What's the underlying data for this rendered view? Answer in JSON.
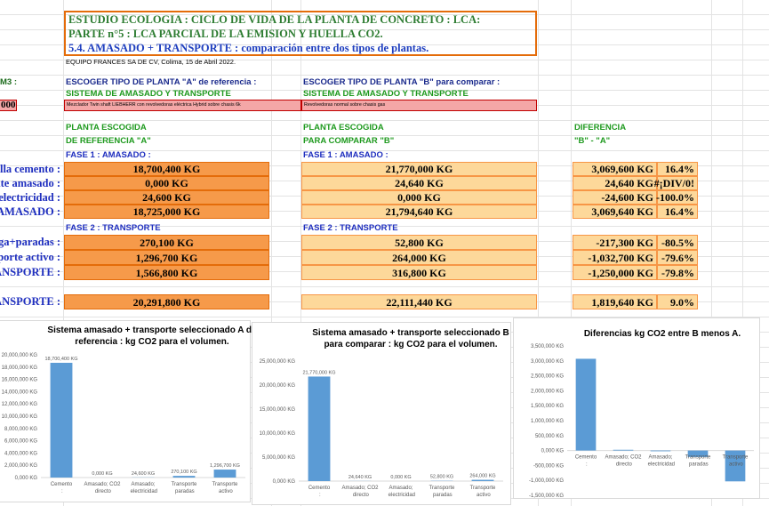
{
  "header": {
    "title_lines": [
      "ESTUDIO ECOLOGIA : CICLO DE VIDA DE LA PLANTA DE CONCRETO : LCA:",
      "PARTE n°5 : LCA PARCIAL DE LA EMISION Y HUELLA CO2.",
      "5.4. AMASADO + TRANSPORTE : comparación entre dos tipos de plantas."
    ],
    "subtitle": "EQUIPO FRANCES SA DE CV, Colima, 15 de Abril 2022."
  },
  "row_labels": [
    "M3 :",
    "000",
    "lla cemento :",
    "nte amasado :",
    "electricidad :",
    "AMASADO :",
    "rga+paradas :",
    "nsporte activo :",
    "ANSPORTE :",
    "ANSPORTE :"
  ],
  "plant_a": {
    "choose": "ESCOGER TIPO DE PLANTA \"A\" de referencia :",
    "system": "SISTEMA DE AMASADO Y TRANSPORTE",
    "model": "Mezclador Twin shaft LIEBHERR con revolvedoras eléctrica Hybrid sobre chasis 6k",
    "heading": "PLANTA ESCOGIDA",
    "subheading": "DE REFERENCIA \"A\"",
    "phase1": "FASE 1 : AMASADO :",
    "phase1_values": [
      "18,700,400 KG",
      "0,000 KG",
      "24,600 KG",
      "18,725,000 KG"
    ],
    "phase2": "FASE 2 : TRANSPORTE",
    "phase2_values": [
      "270,100 KG",
      "1,296,700 KG",
      "1,566,800 KG"
    ],
    "total": "20,291,800 KG"
  },
  "plant_b": {
    "choose": "ESCOGER TIPO DE PLANTA \"B\" para comparar :",
    "system": "SISTEMA DE AMASADO Y TRANSPORTE",
    "model": "Revolvedoras normal sobre chasis gas",
    "heading": "PLANTA ESCOGIDA",
    "subheading": "PARA COMPARAR \"B\"",
    "phase1": "FASE 1 : AMASADO :",
    "phase1_values": [
      "21,770,000 KG",
      "24,640 KG",
      "0,000 KG",
      "21,794,640 KG"
    ],
    "phase2": "FASE 2 : TRANSPORTE",
    "phase2_values": [
      "52,800 KG",
      "264,000 KG",
      "316,800 KG"
    ],
    "total": "22,111,440 KG"
  },
  "difference": {
    "heading": "DIFERENCIA",
    "subheading": "\"B\" - \"A\"",
    "rows": [
      [
        "3,069,600 KG",
        "16.4%"
      ],
      [
        "24,640 KG",
        "#¡DIV/0!"
      ],
      [
        "-24,600 KG",
        "-100.0%"
      ],
      [
        "3,069,640 KG",
        "16.4%"
      ],
      [
        "-217,300 KG",
        "-80.5%"
      ],
      [
        "-1,032,700 KG",
        "-79.6%"
      ],
      [
        "-1,250,000 KG",
        "-79.8%"
      ],
      [
        "1,819,640 KG",
        "9.0%"
      ]
    ]
  },
  "chart_data": [
    {
      "type": "bar",
      "title": "Sistema amasado + transporte seleccionado A de referencia : kg CO2 para el volumen.",
      "categories": [
        "Cemento :",
        "Amasado; CO2 directo",
        "Amasado; electricidad",
        "Transporte paradas",
        "Transporte activo"
      ],
      "values": [
        18700400,
        0,
        24600,
        270100,
        1296700
      ],
      "value_labels": [
        "18,700,400 KG",
        "0,000 KG",
        "24,600 KG",
        "270,100 KG",
        "1,296,700 KG"
      ],
      "color": "#5b9bd5",
      "ylim": [
        0,
        20000000
      ],
      "yticks": [
        {
          "value": 0,
          "label": "0,000 KG"
        },
        {
          "value": 2000000,
          "label": "2,000,000 KG"
        },
        {
          "value": 4000000,
          "label": "4,000,000 KG"
        },
        {
          "value": 6000000,
          "label": "6,000,000 KG"
        },
        {
          "value": 8000000,
          "label": "8,000,000 KG"
        },
        {
          "value": 10000000,
          "label": "10,000,000 KG"
        },
        {
          "value": 12000000,
          "label": "12,000,000 KG"
        },
        {
          "value": 14000000,
          "label": "14,000,000 KG"
        },
        {
          "value": 16000000,
          "label": "16,000,000 KG"
        },
        {
          "value": 18000000,
          "label": "18,000,000 KG"
        },
        {
          "value": 20000000,
          "label": "20,000,000 KG"
        }
      ]
    },
    {
      "type": "bar",
      "title": "Sistema amasado + transporte seleccionado B para comparar : kg CO2 para el volumen.",
      "categories": [
        "Cemento :",
        "Amasado; CO2 directo",
        "Amasado; electricidad",
        "Transporte paradas",
        "Transporte activo"
      ],
      "values": [
        21770000,
        24640,
        0,
        52800,
        264000
      ],
      "value_labels": [
        "21,770,000 KG",
        "24,640 KG",
        "0,000 KG",
        "52,800 KG",
        "264,000 KG"
      ],
      "color": "#5b9bd5",
      "ylim": [
        0,
        25000000
      ],
      "yticks": [
        {
          "value": 0,
          "label": "0,000 KG"
        },
        {
          "value": 5000000,
          "label": "5,000,000 KG"
        },
        {
          "value": 10000000,
          "label": "10,000,000 KG"
        },
        {
          "value": 15000000,
          "label": "15,000,000 KG"
        },
        {
          "value": 20000000,
          "label": "20,000,000 KG"
        },
        {
          "value": 25000000,
          "label": "25,000,000 KG"
        }
      ]
    },
    {
      "type": "bar",
      "title": "Diferencias kg CO2 entre B  menos A.",
      "categories": [
        "Cemento :",
        "Amasado; CO2 directo",
        "Amasado; electricidad",
        "Transporte paradas",
        "Transporte activo"
      ],
      "values": [
        3069600,
        24640,
        -24600,
        -217300,
        -1032700
      ],
      "color": "#5b9bd5",
      "ylim": [
        -1500000,
        3500000
      ],
      "yticks": [
        {
          "value": -1500000,
          "label": "-1,500,000 KG"
        },
        {
          "value": -1000000,
          "label": "-1,000,000 KG"
        },
        {
          "value": -500000,
          "label": "-500,000 KG"
        },
        {
          "value": 0,
          "label": "0,000 KG"
        },
        {
          "value": 500000,
          "label": "500,000 KG"
        },
        {
          "value": 1000000,
          "label": "1,000,000 KG"
        },
        {
          "value": 1500000,
          "label": "1,500,000 KG"
        },
        {
          "value": 2000000,
          "label": "2,000,000 KG"
        },
        {
          "value": 2500000,
          "label": "2,500,000 KG"
        },
        {
          "value": 3000000,
          "label": "3,000,000 KG"
        },
        {
          "value": 3500000,
          "label": "3,500,000 KG"
        }
      ]
    }
  ]
}
